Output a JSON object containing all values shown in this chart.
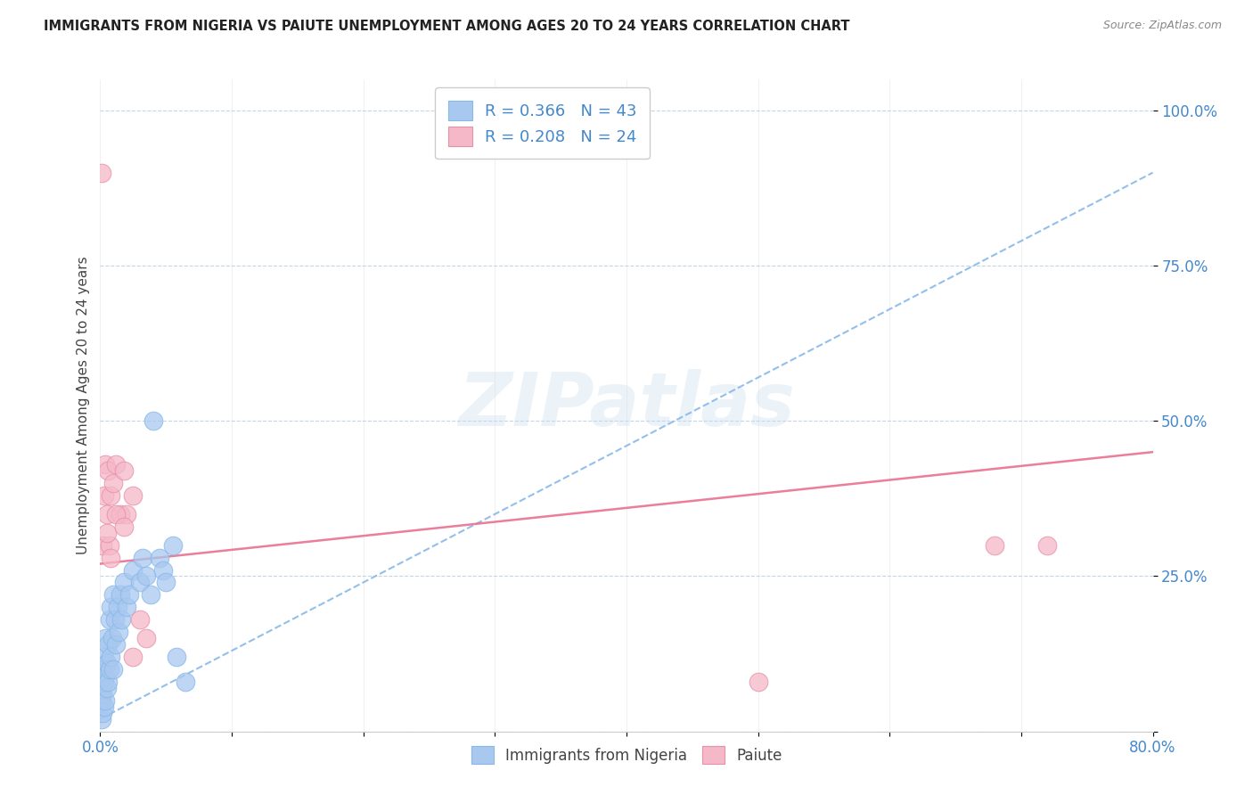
{
  "title": "IMMIGRANTS FROM NIGERIA VS PAIUTE UNEMPLOYMENT AMONG AGES 20 TO 24 YEARS CORRELATION CHART",
  "source": "Source: ZipAtlas.com",
  "ylabel": "Unemployment Among Ages 20 to 24 years",
  "xlabel": "",
  "xlim": [
    0.0,
    0.8
  ],
  "ylim": [
    0.0,
    1.05
  ],
  "xticks": [
    0.0,
    0.1,
    0.2,
    0.3,
    0.4,
    0.5,
    0.6,
    0.7,
    0.8
  ],
  "xticklabels": [
    "0.0%",
    "",
    "",
    "",
    "",
    "",
    "",
    "",
    "80.0%"
  ],
  "yticks": [
    0.0,
    0.25,
    0.5,
    0.75,
    1.0
  ],
  "yticklabels": [
    "",
    "25.0%",
    "50.0%",
    "75.0%",
    "100.0%"
  ],
  "legend_r1": "R = 0.366",
  "legend_n1": "N = 43",
  "legend_r2": "R = 0.208",
  "legend_n2": "N = 24",
  "color_nigeria": "#a8c8f0",
  "color_paiute": "#f5b8c8",
  "color_nigeria_line": "#88b8e8",
  "color_paiute_line": "#e87090",
  "watermark": "ZIPatlas",
  "nigeria_x": [
    0.001,
    0.001,
    0.002,
    0.002,
    0.002,
    0.003,
    0.003,
    0.003,
    0.004,
    0.004,
    0.004,
    0.005,
    0.005,
    0.006,
    0.006,
    0.007,
    0.007,
    0.008,
    0.008,
    0.009,
    0.01,
    0.01,
    0.011,
    0.012,
    0.013,
    0.014,
    0.015,
    0.016,
    0.018,
    0.02,
    0.022,
    0.025,
    0.03,
    0.032,
    0.035,
    0.038,
    0.04,
    0.045,
    0.048,
    0.05,
    0.055,
    0.058,
    0.065
  ],
  "nigeria_y": [
    0.02,
    0.05,
    0.03,
    0.06,
    0.1,
    0.04,
    0.08,
    0.12,
    0.05,
    0.09,
    0.15,
    0.07,
    0.11,
    0.08,
    0.14,
    0.1,
    0.18,
    0.12,
    0.2,
    0.15,
    0.1,
    0.22,
    0.18,
    0.14,
    0.2,
    0.16,
    0.22,
    0.18,
    0.24,
    0.2,
    0.22,
    0.26,
    0.24,
    0.28,
    0.25,
    0.22,
    0.5,
    0.28,
    0.26,
    0.24,
    0.3,
    0.12,
    0.08
  ],
  "paiute_x": [
    0.001,
    0.002,
    0.003,
    0.004,
    0.005,
    0.006,
    0.007,
    0.008,
    0.01,
    0.012,
    0.015,
    0.018,
    0.02,
    0.025,
    0.03,
    0.035,
    0.005,
    0.008,
    0.012,
    0.018,
    0.025,
    0.5,
    0.68,
    0.72
  ],
  "paiute_y": [
    0.9,
    0.3,
    0.38,
    0.43,
    0.35,
    0.42,
    0.3,
    0.38,
    0.4,
    0.43,
    0.35,
    0.42,
    0.35,
    0.38,
    0.18,
    0.15,
    0.32,
    0.28,
    0.35,
    0.33,
    0.12,
    0.08,
    0.3,
    0.3
  ],
  "nigeria_trend_x0": 0.0,
  "nigeria_trend_y0": 0.02,
  "nigeria_trend_x1": 0.8,
  "nigeria_trend_y1": 0.9,
  "paiute_trend_x0": 0.0,
  "paiute_trend_y0": 0.27,
  "paiute_trend_x1": 0.8,
  "paiute_trend_y1": 0.45
}
